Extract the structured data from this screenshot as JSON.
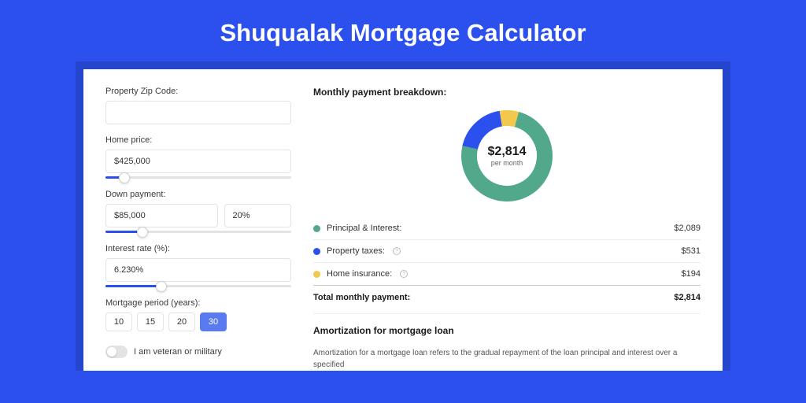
{
  "page": {
    "title": "Shuqualak Mortgage Calculator",
    "background_color": "#2b50ed"
  },
  "form": {
    "zip": {
      "label": "Property Zip Code:",
      "value": ""
    },
    "home_price": {
      "label": "Home price:",
      "value": "$425,000",
      "slider_pct": 10
    },
    "down_payment": {
      "label": "Down payment:",
      "value": "$85,000",
      "percent": "20%",
      "slider_pct": 20
    },
    "interest_rate": {
      "label": "Interest rate (%):",
      "value": "6.230%",
      "slider_pct": 30
    },
    "period": {
      "label": "Mortgage period (years):",
      "options": [
        "10",
        "15",
        "20",
        "30"
      ],
      "selected": "30"
    },
    "veteran": {
      "label": "I am veteran or military",
      "checked": false
    }
  },
  "breakdown": {
    "heading": "Monthly payment breakdown:",
    "donut": {
      "center_value": "$2,814",
      "center_label": "per month",
      "slices": [
        {
          "key": "principal_interest",
          "value": 2089,
          "color": "#51a88a"
        },
        {
          "key": "property_taxes",
          "value": 531,
          "color": "#2b50ed"
        },
        {
          "key": "home_insurance",
          "value": 194,
          "color": "#f2c94c"
        }
      ],
      "stroke_width": 20,
      "radius": 48
    },
    "items": [
      {
        "label": "Principal & Interest:",
        "amount": "$2,089",
        "color": "#51a88a",
        "info": false
      },
      {
        "label": "Property taxes:",
        "amount": "$531",
        "color": "#2b50ed",
        "info": true
      },
      {
        "label": "Home insurance:",
        "amount": "$194",
        "color": "#f2c94c",
        "info": true
      }
    ],
    "total": {
      "label": "Total monthly payment:",
      "amount": "$2,814"
    }
  },
  "amortization": {
    "heading": "Amortization for mortgage loan",
    "text": "Amortization for a mortgage loan refers to the gradual repayment of the loan principal and interest over a specified"
  }
}
